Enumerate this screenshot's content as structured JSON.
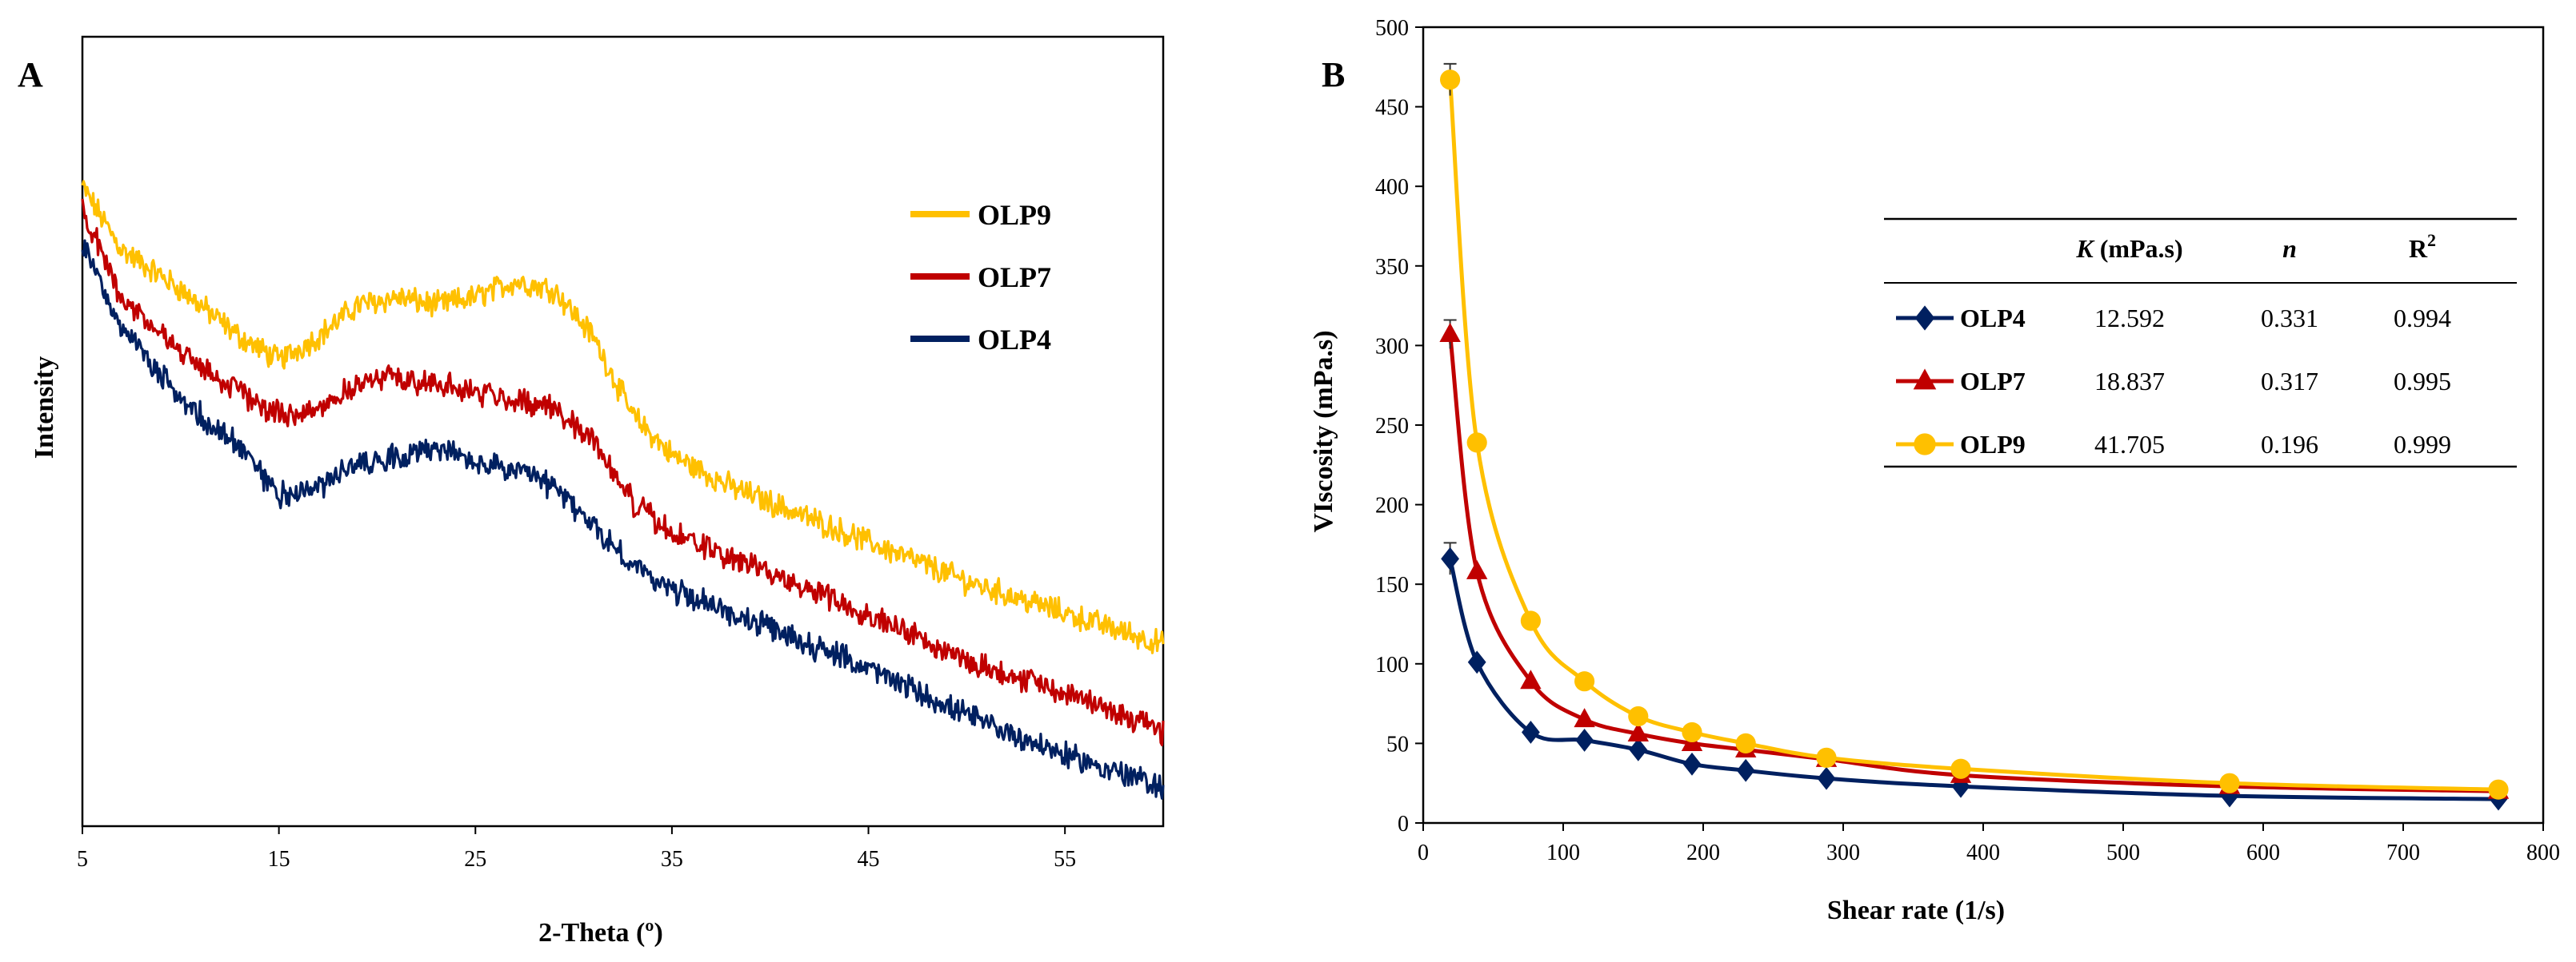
{
  "chart_data": [
    {
      "panel": "A",
      "type": "line",
      "xlabel": "2-Theta (º)",
      "ylabel": "Intensity",
      "xlim": [
        5,
        60
      ],
      "xticks": [
        5,
        15,
        25,
        35,
        45,
        55
      ],
      "ylim": [
        0,
        100
      ],
      "yaxis_ticks_shown": false,
      "legend_position": "top-right",
      "series": [
        {
          "name": "OLP9",
          "color": "#FFC000",
          "x": [
            5,
            7,
            10,
            13,
            15,
            17,
            19,
            21,
            23,
            25,
            27,
            29,
            31,
            33,
            35,
            38,
            41,
            45,
            50,
            55,
            60
          ],
          "y": [
            81,
            73,
            68,
            62,
            59,
            62,
            66,
            67,
            66,
            67,
            69,
            68,
            62,
            52,
            47,
            43,
            40,
            36,
            31,
            27,
            23
          ]
        },
        {
          "name": "OLP7",
          "color": "#C00000",
          "x": [
            5,
            7,
            10,
            13,
            15,
            17,
            19,
            21,
            23,
            25,
            27,
            29,
            31,
            33,
            35,
            38,
            41,
            45,
            50,
            55,
            60
          ],
          "y": [
            78,
            67,
            60,
            55,
            52,
            53,
            56,
            57,
            56,
            55,
            54,
            53,
            49,
            41,
            37,
            34,
            31,
            27,
            21,
            17,
            12
          ]
        },
        {
          "name": "OLP4",
          "color": "#002060",
          "x": [
            5,
            7,
            10,
            13,
            15,
            17,
            19,
            21,
            23,
            25,
            27,
            29,
            31,
            33,
            35,
            38,
            41,
            45,
            50,
            55,
            60
          ],
          "y": [
            74,
            63,
            54,
            48,
            42,
            43,
            46,
            47,
            48,
            46,
            45,
            43,
            38,
            33,
            30,
            27,
            24,
            20,
            14,
            9,
            5
          ]
        }
      ]
    },
    {
      "panel": "B",
      "type": "line",
      "xlabel": "Shear rate (1/s)",
      "ylabel": "VIscosity (mPa.s)",
      "xlim": [
        0,
        800
      ],
      "ylim": [
        0,
        500
      ],
      "xticks": [
        0,
        100,
        200,
        300,
        400,
        500,
        600,
        700,
        800
      ],
      "yticks": [
        0,
        50,
        100,
        150,
        200,
        250,
        300,
        350,
        400,
        450,
        500
      ],
      "series": [
        {
          "name": "OLP4",
          "color": "#002060",
          "marker": "diamond",
          "x": [
            19.2,
            38.4,
            76.8,
            115.2,
            153.6,
            192,
            230.4,
            288,
            384,
            576,
            768
          ],
          "y": [
            166,
            101,
            57,
            52,
            46,
            37,
            33,
            28,
            23,
            17,
            15
          ],
          "error": [
            10,
            0,
            0,
            0,
            0,
            0,
            0,
            0,
            0,
            0,
            0
          ]
        },
        {
          "name": "OLP7",
          "color": "#C00000",
          "marker": "triangle",
          "x": [
            19.2,
            38.4,
            76.8,
            115.2,
            153.6,
            192,
            230.4,
            288,
            384,
            576,
            768
          ],
          "y": [
            307,
            158,
            89,
            65,
            56,
            50,
            46,
            40,
            30,
            23,
            20
          ],
          "error": [
            9,
            0,
            0,
            0,
            0,
            0,
            0,
            0,
            0,
            0,
            0
          ]
        },
        {
          "name": "OLP9",
          "color": "#FFC000",
          "marker": "circle",
          "x": [
            19.2,
            38.4,
            76.8,
            115.2,
            153.6,
            192,
            230.4,
            288,
            384,
            576,
            768
          ],
          "y": [
            467,
            239,
            127,
            89,
            67,
            57,
            50,
            41,
            34,
            25,
            21
          ],
          "error": [
            10,
            0,
            0,
            0,
            0,
            0,
            0,
            0,
            0,
            0,
            0
          ]
        }
      ],
      "table": {
        "headers": [
          "K",
          " (mPa.s)",
          "n",
          "R",
          "2"
        ],
        "rows": [
          {
            "name": "OLP4",
            "K": "12.592",
            "n": "0.331",
            "R2": "0.994"
          },
          {
            "name": "OLP7",
            "K": "18.837",
            "n": "0.317",
            "R2": "0.995"
          },
          {
            "name": "OLP9",
            "K": "41.705",
            "n": "0.196",
            "R2": "0.999"
          }
        ]
      }
    }
  ]
}
